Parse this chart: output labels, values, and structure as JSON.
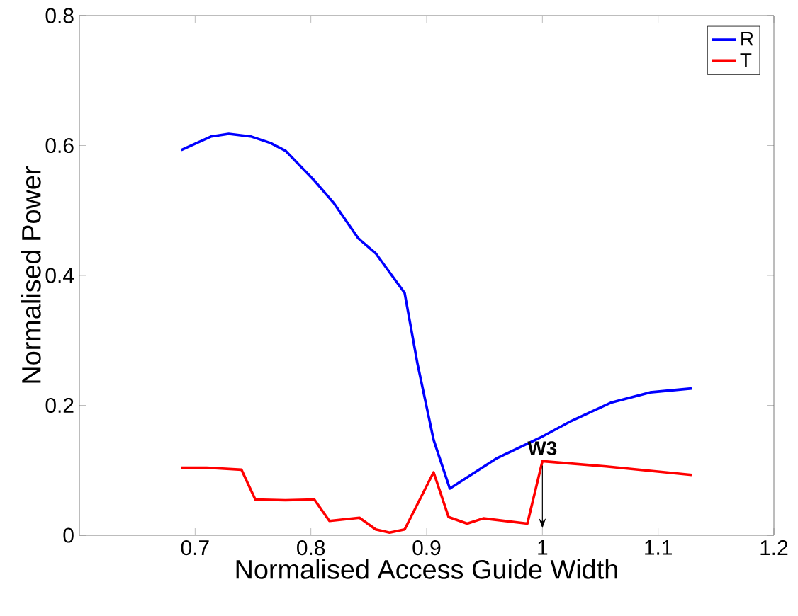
{
  "chart_data": {
    "type": "line",
    "xlabel": "Normalised Access Guide Width",
    "ylabel": "Normalised Power",
    "xlim": [
      0.6,
      1.2
    ],
    "xticks": [
      0.7,
      0.8,
      0.9,
      1,
      1.1,
      1.2
    ],
    "ylim": [
      0,
      0.8
    ],
    "yticks": [
      0,
      0.2,
      0.4,
      0.6,
      0.8
    ],
    "grid": false,
    "legend": "top right",
    "marker": "none",
    "line_style": "solid",
    "annotations": [
      {
        "text": "W3",
        "x": 1.0,
        "y": 0.114
      }
    ],
    "series": [
      {
        "name": "R",
        "color": "#0000ff",
        "x": [
          0.688,
          0.714,
          0.729,
          0.748,
          0.765,
          0.778,
          0.79,
          0.803,
          0.82,
          0.841,
          0.856,
          0.881,
          0.892,
          0.906,
          0.92,
          0.961,
          1.0,
          1.025,
          1.059,
          1.093,
          1.129
        ],
        "values": [
          0.593,
          0.614,
          0.618,
          0.614,
          0.604,
          0.592,
          0.57,
          0.546,
          0.511,
          0.457,
          0.434,
          0.373,
          0.265,
          0.147,
          0.072,
          0.119,
          0.152,
          0.176,
          0.204,
          0.22,
          0.226
        ]
      },
      {
        "name": "T",
        "color": "#ff0000",
        "x": [
          0.688,
          0.71,
          0.74,
          0.752,
          0.778,
          0.803,
          0.816,
          0.842,
          0.856,
          0.868,
          0.881,
          0.906,
          0.919,
          0.935,
          0.949,
          0.987,
          1.0,
          1.055,
          1.129
        ],
        "values": [
          0.104,
          0.104,
          0.101,
          0.055,
          0.054,
          0.055,
          0.022,
          0.027,
          0.009,
          0.004,
          0.009,
          0.097,
          0.028,
          0.018,
          0.026,
          0.018,
          0.114,
          0.106,
          0.093
        ]
      }
    ]
  }
}
